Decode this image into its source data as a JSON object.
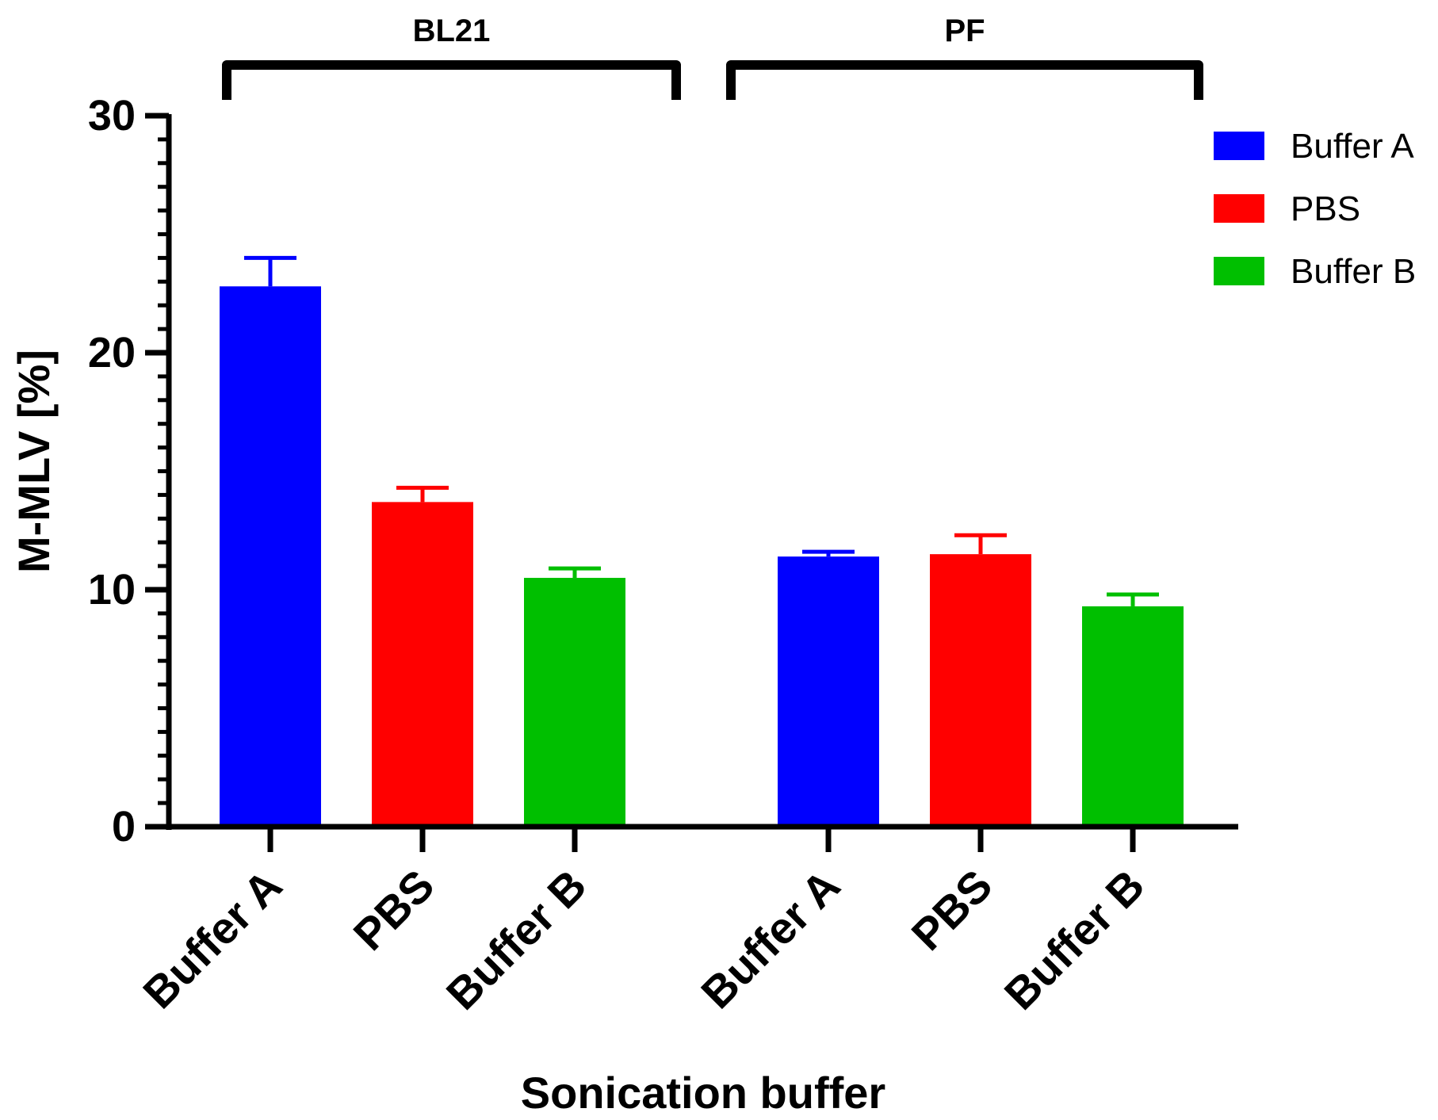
{
  "chart_data": {
    "type": "bar",
    "xlabel": "Sonication buffer",
    "ylabel": "M-MLV [%]",
    "ylim": [
      0,
      30
    ],
    "yticks": [
      0,
      10,
      20,
      30
    ],
    "grid": false,
    "legend_position": "top-right",
    "groups": [
      {
        "name": "BL21",
        "categories": [
          "Buffer A",
          "PBS",
          "Buffer B"
        ],
        "values": [
          22.8,
          13.7,
          10.5
        ],
        "errors": [
          1.2,
          0.6,
          0.4
        ]
      },
      {
        "name": "PF",
        "categories": [
          "Buffer A",
          "PBS",
          "Buffer B"
        ],
        "values": [
          11.4,
          11.5,
          9.3
        ],
        "errors": [
          0.2,
          0.8,
          0.5
        ]
      }
    ],
    "series": [
      {
        "name": "Buffer A",
        "color": "#0000ff"
      },
      {
        "name": "PBS",
        "color": "#ff0000"
      },
      {
        "name": "Buffer B",
        "color": "#00bf00"
      }
    ]
  }
}
